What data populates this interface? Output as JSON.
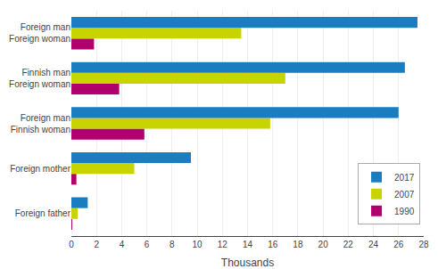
{
  "chart_data": {
    "type": "bar",
    "orientation": "horizontal",
    "categories": [
      "Foreign father",
      "Foreign mother",
      "Foreign man\nFinnish woman",
      "Finnish man\nForeign woman",
      "Foreign man\nForeign woman"
    ],
    "series": [
      {
        "name": "2017",
        "color": "#1a7dbf",
        "values": [
          1.3,
          9.5,
          26.0,
          26.5,
          27.5
        ]
      },
      {
        "name": "2007",
        "color": "#c8d400",
        "values": [
          0.5,
          5.0,
          15.8,
          17.0,
          13.5
        ]
      },
      {
        "name": "1990",
        "color": "#b0006e",
        "values": [
          0.02,
          0.4,
          5.8,
          3.8,
          1.8
        ]
      }
    ],
    "xlabel": "Thousands",
    "xlim": [
      0,
      28
    ],
    "xticks": [
      0,
      2,
      4,
      6,
      8,
      10,
      12,
      14,
      16,
      18,
      20,
      22,
      24,
      26,
      28
    ],
    "grid": true,
    "legend": "lower right"
  }
}
